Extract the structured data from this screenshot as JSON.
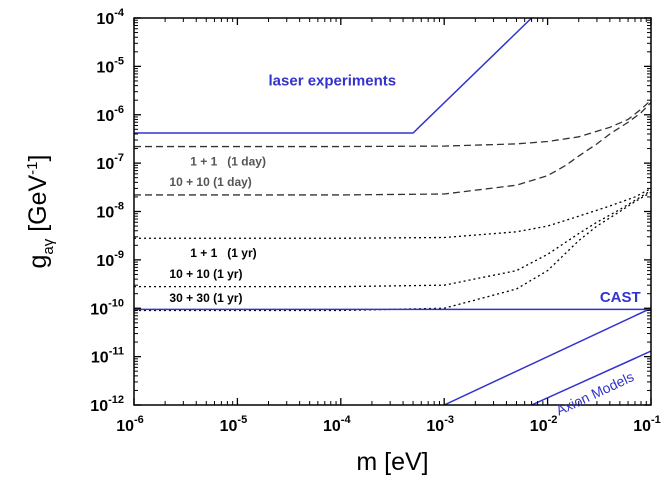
{
  "chart_data": {
    "type": "line",
    "x_scale": "log",
    "y_scale": "log",
    "xlim": [
      1e-06,
      0.1
    ],
    "ylim": [
      1e-12,
      0.0001
    ],
    "xlabel": "m [eV]",
    "ylabel": {
      "base": "g",
      "sub": "aγ",
      "rest": " [GeV",
      "sup": "-1",
      "close": "]"
    },
    "x_ticks": [
      {
        "value": 1e-06,
        "base": "10",
        "exp": "-6"
      },
      {
        "value": 1e-05,
        "base": "10",
        "exp": "-5"
      },
      {
        "value": 0.0001,
        "base": "10",
        "exp": "-4"
      },
      {
        "value": 0.001,
        "base": "10",
        "exp": "-3"
      },
      {
        "value": 0.01,
        "base": "10",
        "exp": "-2"
      },
      {
        "value": 0.1,
        "base": "10",
        "exp": "-1"
      }
    ],
    "y_ticks": [
      {
        "value": 1e-12,
        "base": "10",
        "exp": "-12"
      },
      {
        "value": 1e-11,
        "base": "10",
        "exp": "-11"
      },
      {
        "value": 1e-10,
        "base": "10",
        "exp": "-10"
      },
      {
        "value": 1e-09,
        "base": "10",
        "exp": "-9"
      },
      {
        "value": 1e-08,
        "base": "10",
        "exp": "-8"
      },
      {
        "value": 1e-07,
        "base": "10",
        "exp": "-7"
      },
      {
        "value": 1e-06,
        "base": "10",
        "exp": "-6"
      },
      {
        "value": 1e-05,
        "base": "10",
        "exp": "-5"
      },
      {
        "value": 0.0001,
        "base": "10",
        "exp": "-4"
      }
    ],
    "series": [
      {
        "name": "laser experiments",
        "style": "solid",
        "color": "#3333cc",
        "label_color": "#3333cc",
        "label_at": [
          2e-05,
          4e-06
        ],
        "points": [
          [
            1e-06,
            4.2e-07
          ],
          [
            0.0005,
            4.2e-07
          ],
          [
            0.007,
            0.0001
          ]
        ]
      },
      {
        "name": "1 + 1   (1 day)",
        "style": "dashed",
        "color": "#333333",
        "label_color": "#555555",
        "label_at": [
          3.5e-06,
          9e-08
        ],
        "points": [
          [
            1e-06,
            2.2e-07
          ],
          [
            0.0001,
            2.2e-07
          ],
          [
            0.001,
            2.25e-07
          ],
          [
            0.005,
            2.5e-07
          ],
          [
            0.01,
            2.8e-07
          ],
          [
            0.02,
            3.5e-07
          ],
          [
            0.04,
            5.5e-07
          ],
          [
            0.06,
            8e-07
          ],
          [
            0.08,
            1.3e-06
          ],
          [
            0.1,
            2e-06
          ]
        ]
      },
      {
        "name": "10 + 10 (1 day)",
        "style": "dashed",
        "color": "#333333",
        "label_color": "#555555",
        "label_at": [
          2.2e-06,
          3.4e-08
        ],
        "points": [
          [
            1e-06,
            2.2e-08
          ],
          [
            0.0001,
            2.2e-08
          ],
          [
            0.001,
            2.3e-08
          ],
          [
            0.005,
            3.5e-08
          ],
          [
            0.01,
            5.5e-08
          ],
          [
            0.015,
            9e-08
          ],
          [
            0.02,
            1.4e-07
          ],
          [
            0.03,
            2.5e-07
          ],
          [
            0.04,
            4e-07
          ],
          [
            0.06,
            7e-07
          ],
          [
            0.08,
            1.1e-06
          ],
          [
            0.1,
            1.8e-06
          ]
        ]
      },
      {
        "name": "1 + 1   (1 yr)",
        "style": "dotted",
        "color": "#000000",
        "label_color": "#000000",
        "label_at": [
          3.5e-06,
          1.15e-09
        ],
        "points": [
          [
            1e-06,
            2.8e-09
          ],
          [
            0.0001,
            2.8e-09
          ],
          [
            0.001,
            2.9e-09
          ],
          [
            0.005,
            3.8e-09
          ],
          [
            0.01,
            5e-09
          ],
          [
            0.02,
            8e-09
          ],
          [
            0.04,
            1.3e-08
          ],
          [
            0.07,
            2e-08
          ],
          [
            0.1,
            3e-08
          ]
        ]
      },
      {
        "name": "10 + 10 (1 yr)",
        "style": "dotted",
        "color": "#000000",
        "label_color": "#000000",
        "label_at": [
          2.2e-06,
          4.2e-10
        ],
        "points": [
          [
            1e-06,
            2.8e-10
          ],
          [
            0.0001,
            2.8e-10
          ],
          [
            0.001,
            3e-10
          ],
          [
            0.005,
            6e-10
          ],
          [
            0.01,
            1.3e-09
          ],
          [
            0.02,
            3.5e-09
          ],
          [
            0.03,
            6e-09
          ],
          [
            0.05,
            1.1e-08
          ],
          [
            0.07,
            1.7e-08
          ],
          [
            0.1,
            2.7e-08
          ]
        ]
      },
      {
        "name": "30 + 30 (1 yr)",
        "style": "dotted",
        "color": "#000000",
        "label_color": "#000000",
        "label_at": [
          2.2e-06,
          1.35e-10
        ],
        "points": [
          [
            1e-06,
            9e-11
          ],
          [
            0.0001,
            9e-11
          ],
          [
            0.001,
            1e-10
          ],
          [
            0.005,
            2.5e-10
          ],
          [
            0.01,
            6e-10
          ],
          [
            0.02,
            2.5e-09
          ],
          [
            0.03,
            5e-09
          ],
          [
            0.05,
            1e-08
          ],
          [
            0.07,
            1.6e-08
          ],
          [
            0.1,
            2.5e-08
          ]
        ]
      },
      {
        "name": "CAST",
        "style": "solid",
        "color": "#3333cc",
        "label_color": "#3333cc",
        "label_at": [
          0.032,
          1.35e-10
        ],
        "points": [
          [
            1e-06,
            9.5e-11
          ],
          [
            0.1,
            9.5e-11
          ]
        ]
      }
    ],
    "band": {
      "name": "Axion Models",
      "color": "#3333cc",
      "label_at": [
        0.03,
        1.4e-12
      ],
      "lines": [
        [
          [
            0.001,
            1e-12
          ],
          [
            0.1,
            1e-10
          ]
        ],
        [
          [
            0.007,
            1e-12
          ],
          [
            0.1,
            1.3e-11
          ]
        ]
      ]
    }
  }
}
